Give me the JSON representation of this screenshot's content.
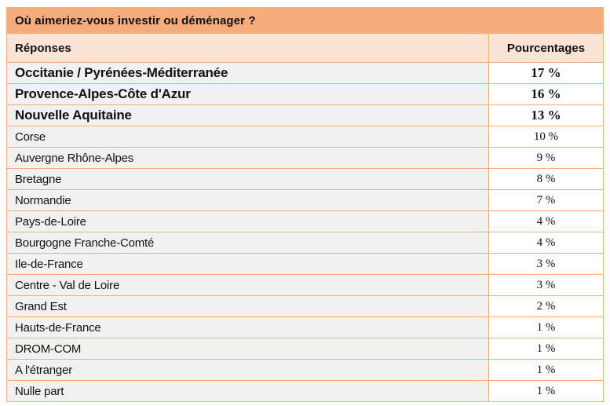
{
  "table": {
    "title": "Où aimeriez-vous investir ou déménager ?",
    "columns": {
      "responses": "Réponses",
      "percentages": "Pourcentages"
    },
    "rows": [
      {
        "label": "Occitanie / Pyrénées-Méditerranée",
        "value": "17 %",
        "bold": true
      },
      {
        "label": "Provence-Alpes-Côte d'Azur",
        "value": "16 %",
        "bold": true
      },
      {
        "label": "Nouvelle Aquitaine",
        "value": "13 %",
        "bold": true
      },
      {
        "label": "Corse",
        "value": "10 %",
        "bold": false
      },
      {
        "label": "Auvergne Rhône-Alpes",
        "value": "9 %",
        "bold": false
      },
      {
        "label": "Bretagne",
        "value": "8 %",
        "bold": false
      },
      {
        "label": "Normandie",
        "value": "7 %",
        "bold": false
      },
      {
        "label": "Pays-de-Loire",
        "value": "4 %",
        "bold": false
      },
      {
        "label": "Bourgogne Franche-Comté",
        "value": "4 %",
        "bold": false
      },
      {
        "label": "Ile-de-France",
        "value": "3 %",
        "bold": false
      },
      {
        "label": "Centre - Val de Loire",
        "value": "3 %",
        "bold": false
      },
      {
        "label": "Grand Est",
        "value": "2 %",
        "bold": false
      },
      {
        "label": "Hauts-de-France",
        "value": "1 %",
        "bold": false
      },
      {
        "label": "DROM-COM",
        "value": "1 %",
        "bold": false
      },
      {
        "label": "A l'étranger",
        "value": "1 %",
        "bold": false
      },
      {
        "label": "Nulle part",
        "value": "1 %",
        "bold": false
      }
    ]
  },
  "colors": {
    "title_bg": "#F4AC7C",
    "header_bg": "#FBE4D5",
    "border": "#F2AF7E",
    "row_bg": "#F1F1F1",
    "pct_bg": "#FFFFFF",
    "text": "#111111"
  }
}
